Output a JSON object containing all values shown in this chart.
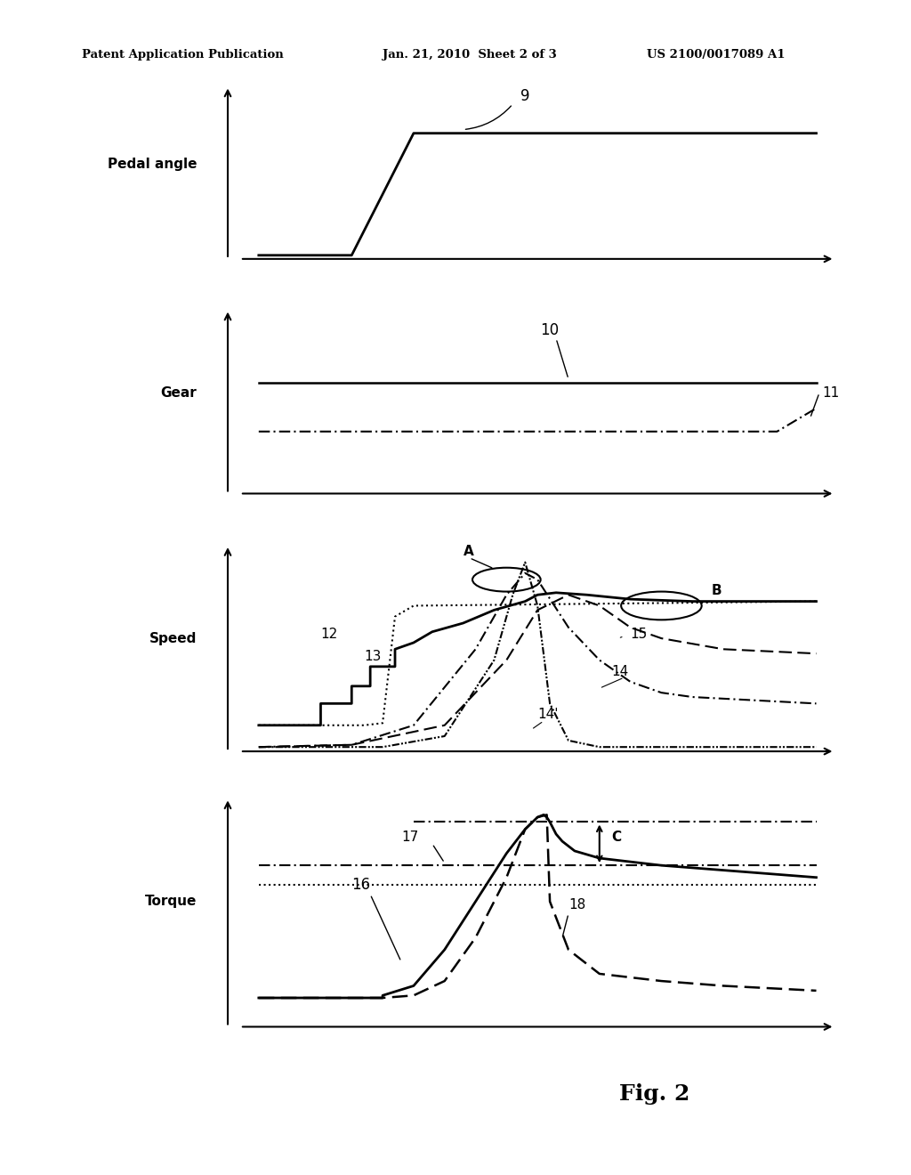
{
  "header_left": "Patent Application Publication",
  "header_mid": "Jan. 21, 2010  Sheet 2 of 3",
  "header_right": "US 2100/0017089 A1",
  "fig_label": "Fig. 2",
  "background_color": "#ffffff"
}
